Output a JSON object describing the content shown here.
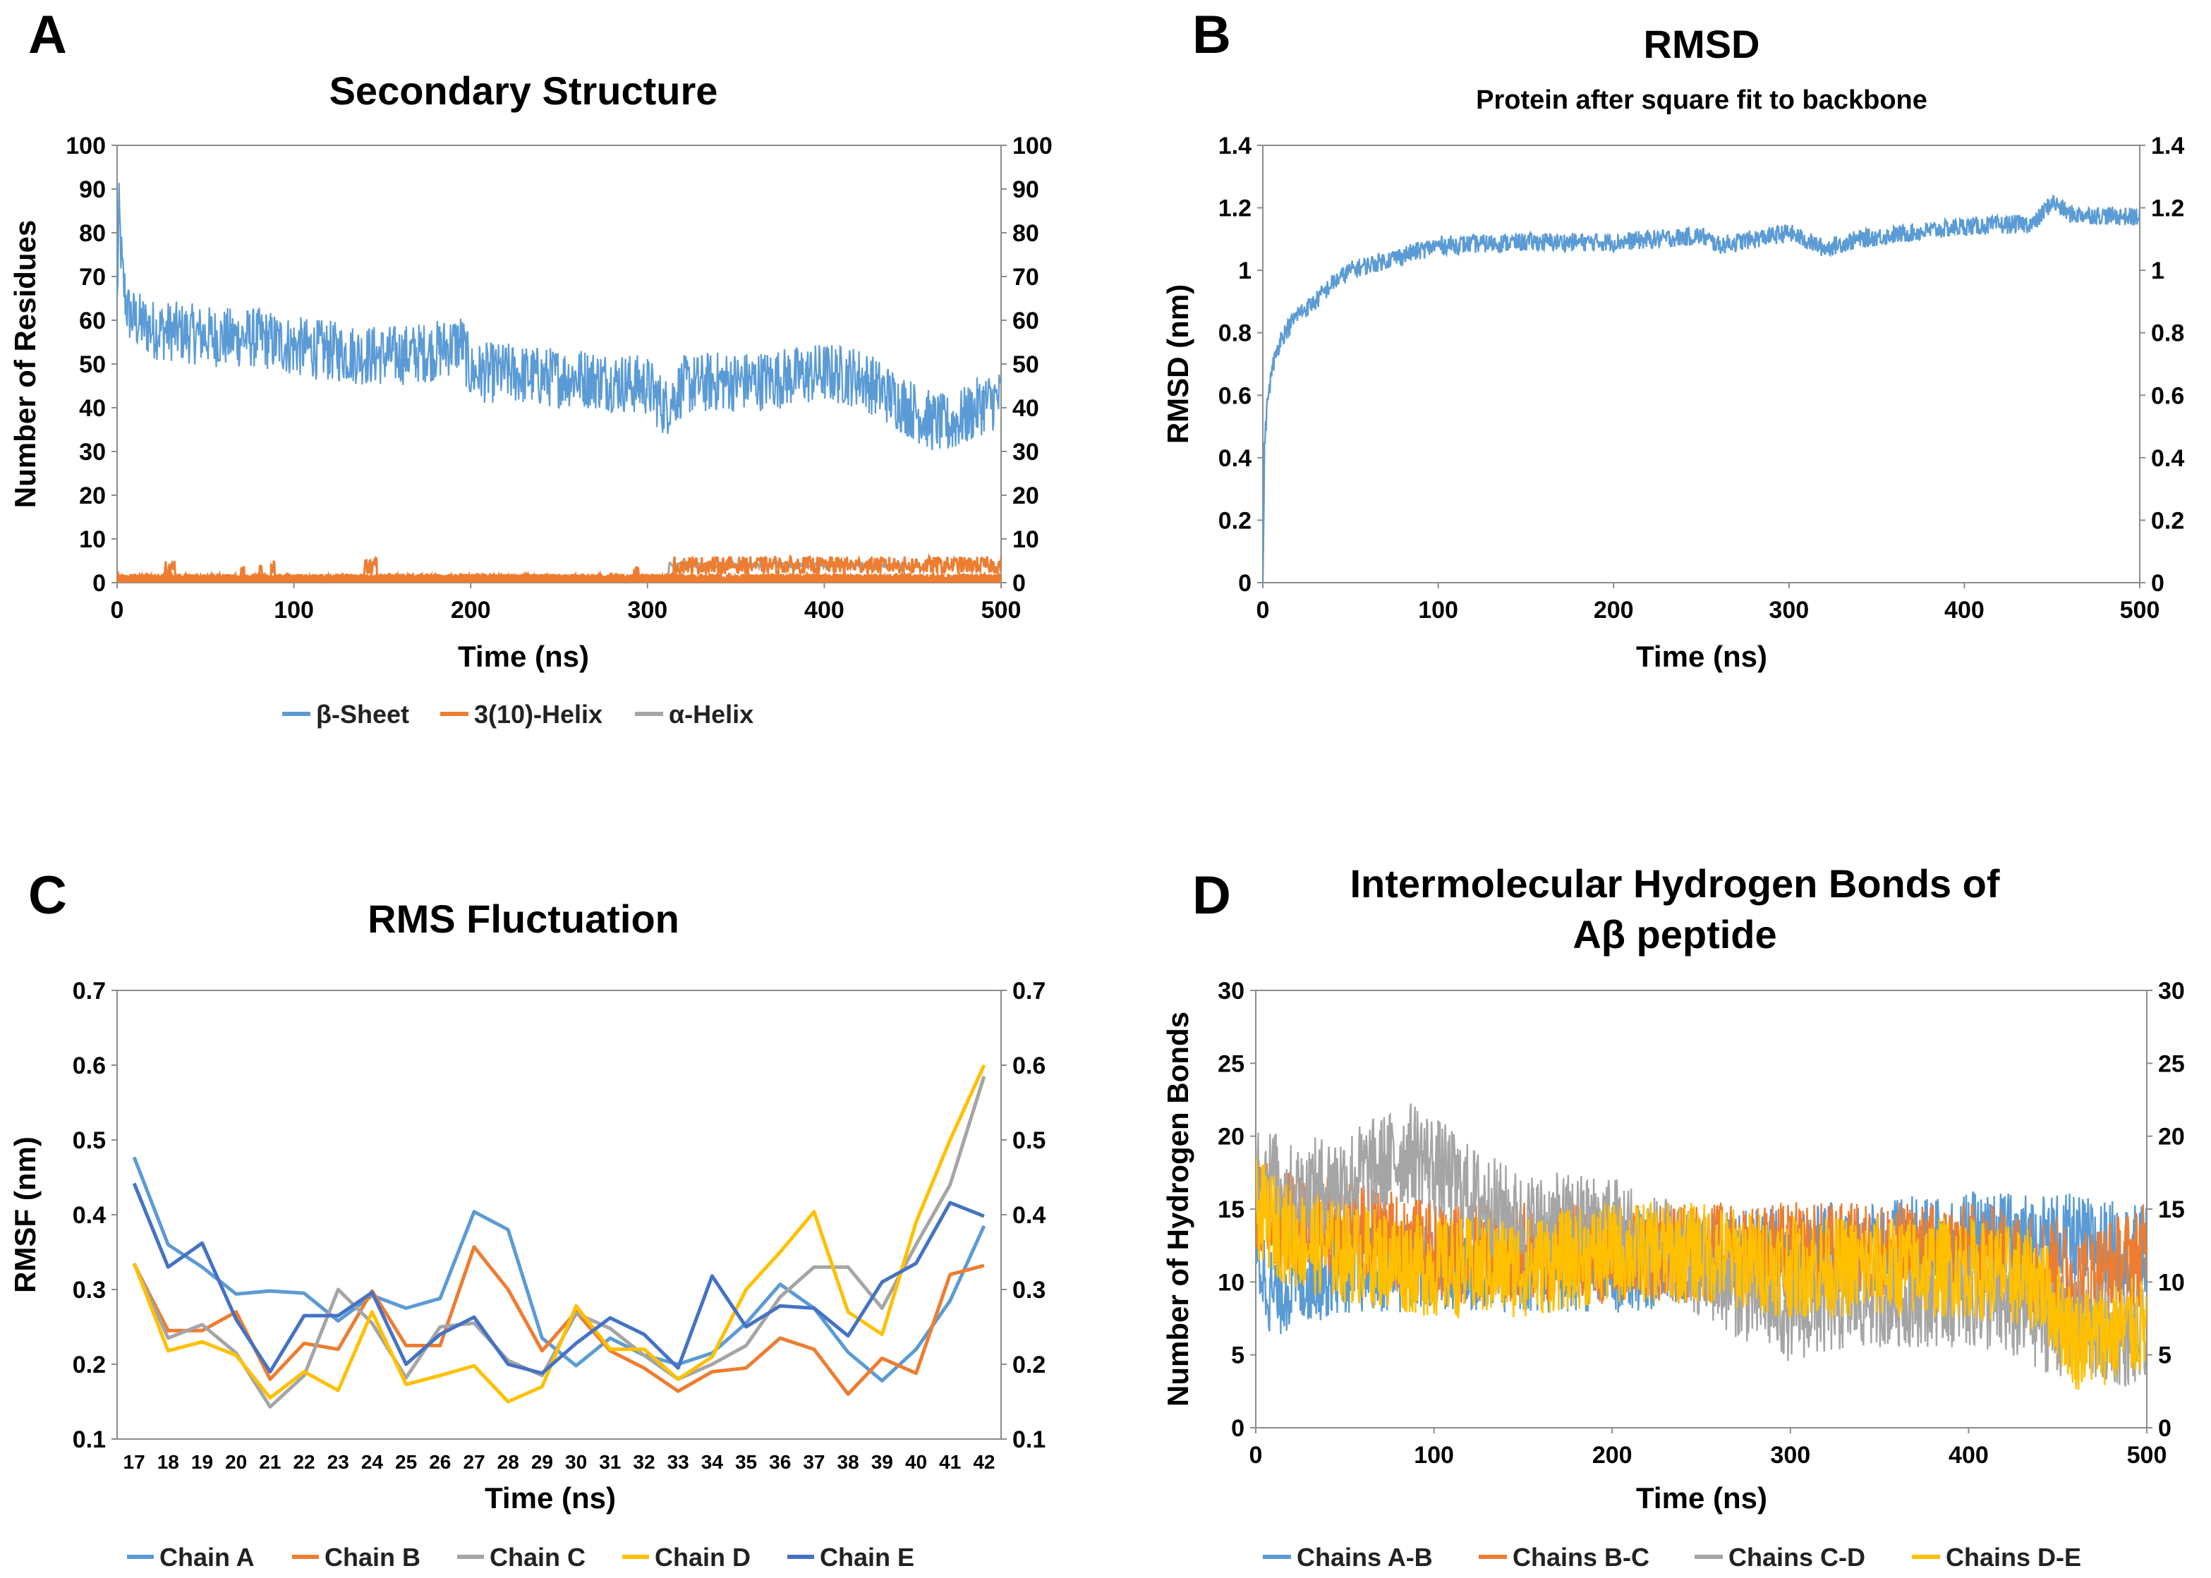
{
  "colors": {
    "blue": "#5B9BD5",
    "orange": "#ED7D31",
    "gray": "#A5A5A5",
    "yellow": "#FFC000",
    "darkblue": "#4472C4"
  },
  "chart_data": [
    {
      "id": "A",
      "type": "line",
      "panel_letter": "A",
      "title": "Secondary Structure",
      "subtitle": "",
      "xlabel": "Time (ns)",
      "ylabel": "Number of Residues",
      "xlim": [
        0,
        500
      ],
      "ylim": [
        0,
        100
      ],
      "xticks": [
        "0",
        "100",
        "200",
        "300",
        "400",
        "500"
      ],
      "yticks": [
        "0",
        "10",
        "20",
        "30",
        "40",
        "50",
        "60",
        "70",
        "80",
        "90",
        "100"
      ],
      "legend_position": "bottom",
      "series": [
        {
          "name": "β-Sheet",
          "color": "#5B9BD5",
          "x": [
            0,
            1,
            3,
            6,
            10,
            20,
            40,
            60,
            80,
            100,
            120,
            140,
            160,
            180,
            195,
            200,
            220,
            240,
            260,
            280,
            300,
            310,
            320,
            340,
            360,
            380,
            400,
            420,
            440,
            460,
            470,
            480,
            490,
            500
          ],
          "y": [
            63,
            85,
            70,
            62,
            60,
            58,
            57,
            56,
            56,
            54,
            53,
            52,
            52,
            53,
            55,
            48,
            48,
            47,
            47,
            46,
            45,
            40,
            45,
            46,
            46,
            47,
            48,
            47,
            42,
            37,
            36,
            38,
            41,
            42
          ],
          "noise": 7
        },
        {
          "name": "3(10)-Helix",
          "color": "#ED7D31",
          "segments": [
            [
              27,
              33,
              3
            ],
            [
              70,
              72,
              3
            ],
            [
              80,
              82,
              3
            ],
            [
              87,
              89,
              3
            ],
            [
              140,
              147,
              4
            ],
            [
              292,
              295,
              3
            ],
            [
              315,
              500,
              4
            ]
          ],
          "noise": 2
        },
        {
          "name": "α-Helix",
          "color": "#A5A5A5",
          "segments": [
            [
              312,
              445,
              4
            ]
          ],
          "noise": 0.6
        }
      ]
    },
    {
      "id": "B",
      "type": "line",
      "panel_letter": "B",
      "title": "RMSD",
      "subtitle": "Protein after square fit to backbone",
      "xlabel": "Time (ns)",
      "ylabel": "RMSD (nm)",
      "xlim": [
        0,
        500
      ],
      "ylim": [
        0,
        1.4
      ],
      "xticks": [
        "0",
        "100",
        "200",
        "300",
        "400",
        "500"
      ],
      "yticks": [
        "0",
        "0.2",
        "0.4",
        "0.6",
        "0.8",
        "1",
        "1.2",
        "1.4"
      ],
      "series": [
        {
          "name": "RMSD",
          "color": "#5B9BD5",
          "x": [
            0,
            1,
            3,
            6,
            10,
            20,
            30,
            40,
            50,
            75,
            100,
            150,
            200,
            250,
            260,
            300,
            320,
            340,
            400,
            440,
            450,
            460,
            500
          ],
          "y": [
            0,
            0.45,
            0.6,
            0.7,
            0.78,
            0.86,
            0.9,
            0.96,
            1.0,
            1.04,
            1.08,
            1.09,
            1.09,
            1.11,
            1.08,
            1.12,
            1.07,
            1.1,
            1.14,
            1.15,
            1.22,
            1.18,
            1.17
          ],
          "noise": 0.03
        }
      ]
    },
    {
      "id": "C",
      "type": "line",
      "panel_letter": "C",
      "title": "RMS Fluctuation",
      "subtitle": "",
      "xlabel": "Time (ns)",
      "ylabel": "RMSF (nm)",
      "ylim": [
        0.1,
        0.7
      ],
      "categories": [
        "17",
        "18",
        "19",
        "20",
        "21",
        "22",
        "23",
        "24",
        "25",
        "26",
        "27",
        "28",
        "29",
        "30",
        "31",
        "32",
        "33",
        "34",
        "35",
        "36",
        "37",
        "38",
        "39",
        "40",
        "41",
        "42"
      ],
      "yticks": [
        "0.1",
        "0.2",
        "0.3",
        "0.4",
        "0.5",
        "0.6",
        "0.7"
      ],
      "legend_position": "bottom",
      "series": [
        {
          "name": "Chain A",
          "color": "#5B9BD5",
          "values": [
            0.477,
            0.36,
            0.33,
            0.294,
            0.298,
            0.295,
            0.258,
            0.292,
            0.275,
            0.288,
            0.404,
            0.38,
            0.235,
            0.198,
            0.235,
            0.212,
            0.2,
            0.215,
            0.255,
            0.307,
            0.275,
            0.216,
            0.178,
            0.22,
            0.285,
            0.385
          ]
        },
        {
          "name": "Chain B",
          "color": "#ED7D31",
          "values": [
            0.334,
            0.245,
            0.245,
            0.27,
            0.18,
            0.228,
            0.22,
            0.298,
            0.225,
            0.225,
            0.357,
            0.3,
            0.218,
            0.27,
            0.218,
            0.195,
            0.164,
            0.19,
            0.195,
            0.235,
            0.22,
            0.16,
            0.208,
            0.188,
            0.32,
            0.332
          ]
        },
        {
          "name": "Chain C",
          "color": "#A5A5A5",
          "values": [
            0.335,
            0.235,
            0.253,
            0.215,
            0.143,
            0.185,
            0.3,
            0.255,
            0.182,
            0.25,
            0.255,
            0.205,
            0.185,
            0.268,
            0.248,
            0.212,
            0.18,
            0.2,
            0.225,
            0.29,
            0.33,
            0.33,
            0.275,
            0.36,
            0.44,
            0.585
          ]
        },
        {
          "name": "Chain D",
          "color": "#FFC000",
          "values": [
            0.335,
            0.218,
            0.23,
            0.212,
            0.155,
            0.19,
            0.165,
            0.27,
            0.173,
            0.185,
            0.198,
            0.15,
            0.17,
            0.278,
            0.22,
            0.22,
            0.18,
            0.21,
            0.3,
            0.35,
            0.404,
            0.27,
            0.24,
            0.39,
            0.5,
            0.6
          ]
        },
        {
          "name": "Chain E",
          "color": "#4472C4",
          "values": [
            0.442,
            0.33,
            0.362,
            0.26,
            0.19,
            0.265,
            0.265,
            0.296,
            0.2,
            0.24,
            0.263,
            0.2,
            0.188,
            0.228,
            0.262,
            0.24,
            0.195,
            0.318,
            0.25,
            0.278,
            0.275,
            0.238,
            0.31,
            0.335,
            0.416,
            0.398
          ]
        }
      ]
    },
    {
      "id": "D",
      "type": "line",
      "panel_letter": "D",
      "title": "Intermolecular Hydrogen Bonds of",
      "title2": "Aβ peptide",
      "subtitle": "",
      "xlabel": "Time (ns)",
      "ylabel": "Number of Hydrogen Bonds",
      "xlim": [
        0,
        500
      ],
      "ylim": [
        0,
        30
      ],
      "xticks": [
        "0",
        "100",
        "200",
        "300",
        "400",
        "500"
      ],
      "yticks": [
        "0",
        "5",
        "10",
        "15",
        "20",
        "25",
        "30"
      ],
      "legend_position": "bottom",
      "series": [
        {
          "name": "Chains A-B",
          "color": "#5B9BD5",
          "x": [
            0,
            10,
            20,
            50,
            100,
            200,
            300,
            400,
            450,
            500
          ],
          "y": [
            12,
            9,
            10,
            11,
            11,
            11,
            12,
            13,
            13,
            12
          ],
          "noise": 3.2
        },
        {
          "name": "Chains B-C",
          "color": "#ED7D31",
          "x": [
            0,
            20,
            50,
            100,
            200,
            300,
            400,
            450,
            460,
            500
          ],
          "y": [
            15,
            14,
            14,
            12,
            12,
            12,
            12,
            11,
            10,
            12
          ],
          "noise": 3.5
        },
        {
          "name": "Chains C-D",
          "color": "#A5A5A5",
          "x": [
            0,
            20,
            50,
            90,
            120,
            150,
            200,
            250,
            280,
            300,
            350,
            400,
            450,
            500
          ],
          "y": [
            18,
            16,
            17,
            19,
            16,
            14,
            14,
            11,
            9,
            8,
            9,
            9,
            7,
            6
          ],
          "noise": 3.5
        },
        {
          "name": "Chains D-E",
          "color": "#FFC000",
          "x": [
            0,
            20,
            50,
            100,
            150,
            200,
            250,
            300,
            350,
            400,
            440,
            460,
            500
          ],
          "y": [
            15,
            13,
            12,
            11,
            11,
            12,
            12,
            11,
            11,
            11,
            10,
            6,
            7
          ],
          "noise": 3.5
        }
      ]
    }
  ]
}
